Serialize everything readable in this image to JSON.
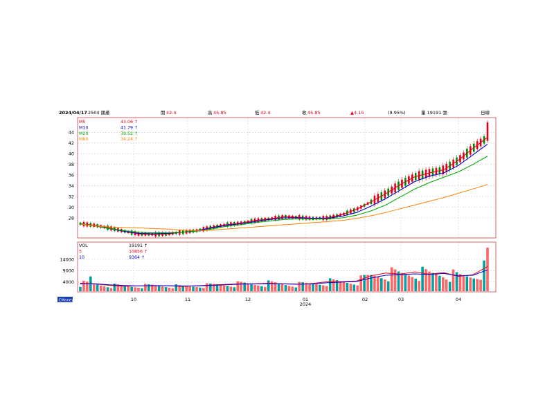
{
  "header": {
    "date": "2024/04/17",
    "stock": "2504 國產",
    "open_label": "開",
    "open": "42.4",
    "high_label": "高",
    "high": "45.85",
    "low_label": "低",
    "low": "42.4",
    "close_label": "收",
    "close": "45.85",
    "change": "▲4.15",
    "change_pct": "(9.95%)",
    "volume": "量 19191 張",
    "period": "日線"
  },
  "price_legend": [
    {
      "label": "M5",
      "value": "43.06 ↑",
      "color": "#e0001b"
    },
    {
      "label": "M10",
      "value": "41.79 ↑",
      "color": "#0000cc"
    },
    {
      "label": "M20",
      "value": "39.52 ↑",
      "color": "#00aa00"
    },
    {
      "label": "M60",
      "value": "34.24 ↑",
      "color": "#ff8000"
    }
  ],
  "volume_legend": [
    {
      "label": "VOL",
      "value": "19191 ↑",
      "color": "#000000"
    },
    {
      "label": "5",
      "value": "10856 ↑",
      "color": "#e0001b"
    },
    {
      "label": "10",
      "value": "9364 ↑",
      "color": "#0000cc"
    }
  ],
  "logo": "CMoney",
  "colors": {
    "up": "#ff6666",
    "up_strong": "#e0001b",
    "down": "#00a0a0",
    "grid": "#cccccc",
    "frame": "#d04040"
  },
  "chart_data": {
    "type": "candlestick",
    "x_tick_labels": [
      "10",
      "11",
      "12",
      "01",
      "02",
      "03",
      "04"
    ],
    "x_year_label": "2024",
    "price_axis": {
      "ticks": [
        28,
        30,
        32,
        34,
        36,
        38,
        40,
        42,
        44
      ],
      "ylim": [
        24.5,
        46.5
      ]
    },
    "volume_axis": {
      "ticks": [
        4000,
        9000,
        14000
      ],
      "ylim": [
        0,
        21000
      ]
    },
    "series": [
      {
        "name": "M5",
        "values": [
          26.9,
          26.6,
          26.1,
          25.5,
          25.0,
          24.9,
          25.0,
          25.3,
          25.6,
          26.2,
          26.7,
          27.0,
          27.5,
          27.8,
          28.2,
          28.1,
          27.9,
          28.0,
          28.6,
          29.6,
          31.0,
          32.5,
          34.2,
          35.7,
          36.4,
          37.0,
          38.8,
          41.0,
          43.06
        ]
      },
      {
        "name": "M10",
        "values": [
          26.9,
          26.5,
          26.0,
          25.5,
          25.1,
          25.0,
          25.1,
          25.3,
          25.6,
          26.1,
          26.6,
          26.9,
          27.3,
          27.7,
          28.0,
          28.0,
          27.9,
          27.9,
          28.3,
          29.0,
          30.2,
          31.6,
          33.2,
          34.8,
          35.8,
          36.4,
          37.8,
          39.8,
          41.79
        ]
      },
      {
        "name": "M20",
        "values": [
          26.9,
          26.5,
          26.0,
          25.6,
          25.3,
          25.2,
          25.2,
          25.3,
          25.5,
          25.9,
          26.4,
          26.7,
          27.1,
          27.4,
          27.7,
          27.8,
          27.8,
          27.8,
          28.0,
          28.5,
          29.3,
          30.4,
          31.9,
          33.4,
          34.6,
          35.6,
          36.6,
          38.0,
          39.52
        ]
      },
      {
        "name": "M60",
        "values": [
          26.8,
          26.5,
          26.3,
          26.2,
          26.1,
          26.0,
          25.9,
          25.7,
          25.6,
          25.7,
          25.9,
          26.1,
          26.3,
          26.5,
          26.7,
          26.9,
          27.1,
          27.3,
          27.5,
          27.9,
          28.4,
          29.0,
          29.7,
          30.4,
          31.1,
          31.8,
          32.6,
          33.4,
          34.24
        ]
      }
    ],
    "volume_ma": [
      {
        "name": "5",
        "values": [
          3500,
          3200,
          2600,
          2200,
          2300,
          2500,
          2400,
          2100,
          2400,
          2700,
          3000,
          3300,
          3300,
          3500,
          3200,
          3000,
          3400,
          4200,
          4200,
          4500,
          6800,
          8000,
          7500,
          8500,
          7500,
          8200,
          6500,
          7200,
          10856
        ]
      },
      {
        "name": "10",
        "values": [
          3200,
          3300,
          2800,
          2500,
          2300,
          2400,
          2400,
          2300,
          2300,
          2500,
          2800,
          3100,
          3200,
          3300,
          3300,
          3100,
          3200,
          3700,
          4000,
          4300,
          5800,
          7000,
          7300,
          7600,
          7400,
          7800,
          6800,
          7000,
          9364
        ]
      }
    ],
    "xlabel": "",
    "ylabel": ""
  }
}
